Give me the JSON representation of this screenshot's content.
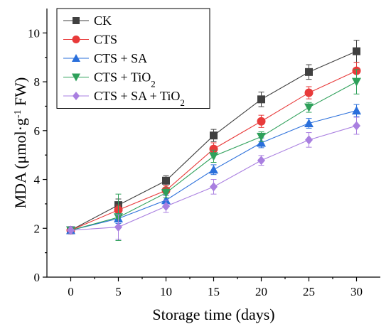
{
  "chart_data": {
    "type": "line",
    "title": "",
    "xlabel": "Storage time (days)",
    "ylabel": {
      "main": "MDA (μmol·g",
      "sup": "-1",
      "tail": " FW)"
    },
    "x": [
      0,
      5,
      10,
      15,
      20,
      25,
      30
    ],
    "xlim": [
      -2.5,
      32.5
    ],
    "ylim": [
      0,
      11
    ],
    "xticks": [
      "0",
      "5",
      "10",
      "15",
      "20",
      "25",
      "30"
    ],
    "yticks": [
      "0",
      "2",
      "4",
      "6",
      "8",
      "10"
    ],
    "legend_position": "top-left",
    "grid": false,
    "series": [
      {
        "name": "CK",
        "label": {
          "main": "CK",
          "sub": "",
          "tail": ""
        },
        "color": "#404040",
        "marker": "square",
        "values": [
          1.92,
          2.95,
          3.95,
          5.8,
          7.28,
          8.4,
          9.25
        ],
        "errors": [
          0.15,
          0.25,
          0.2,
          0.25,
          0.3,
          0.3,
          0.45
        ]
      },
      {
        "name": "CTS",
        "label": {
          "main": "CTS",
          "sub": "",
          "tail": ""
        },
        "color": "#e83a3a",
        "marker": "circle",
        "values": [
          1.92,
          2.75,
          3.55,
          5.25,
          6.38,
          7.55,
          8.45
        ],
        "errors": [
          0.15,
          0.2,
          0.2,
          0.25,
          0.25,
          0.25,
          0.35
        ]
      },
      {
        "name": "CTS + SA",
        "label": {
          "main": "CTS + SA",
          "sub": "",
          "tail": ""
        },
        "color": "#2a6fdb",
        "marker": "triangle-up",
        "values": [
          1.92,
          2.4,
          3.15,
          4.4,
          5.5,
          6.3,
          6.82
        ],
        "errors": [
          0.15,
          0.2,
          0.2,
          0.2,
          0.2,
          0.2,
          0.25
        ]
      },
      {
        "name": "CTS + TiO2",
        "label": {
          "main": "CTS + TiO",
          "sub": "2",
          "tail": ""
        },
        "color": "#2ea05a",
        "marker": "triangle-down",
        "values": [
          1.92,
          2.45,
          3.45,
          4.95,
          5.75,
          6.95,
          8.0
        ],
        "errors": [
          0.15,
          0.95,
          0.2,
          0.25,
          0.2,
          0.2,
          0.5
        ]
      },
      {
        "name": "CTS + SA + TiO2",
        "label": {
          "main": "CTS + SA + TiO",
          "sub": "2",
          "tail": ""
        },
        "color": "#a97fe0",
        "marker": "diamond",
        "values": [
          1.92,
          2.05,
          2.9,
          3.7,
          4.78,
          5.62,
          6.2
        ],
        "errors": [
          0.15,
          0.5,
          0.25,
          0.3,
          0.2,
          0.3,
          0.35
        ]
      }
    ]
  }
}
